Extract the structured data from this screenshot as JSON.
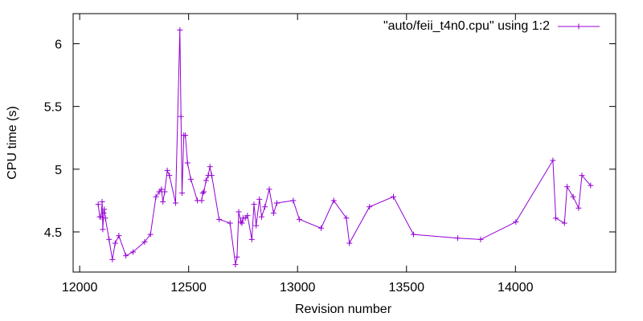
{
  "chart_data": {
    "type": "line",
    "xlabel": "Revision number",
    "ylabel": "CPU time (s)",
    "xlim": [
      11970,
      14460
    ],
    "ylim": [
      4.18,
      6.24
    ],
    "x_ticks": [
      12000,
      12500,
      13000,
      13500,
      14000
    ],
    "y_ticks": [
      4.5,
      5,
      5.5,
      6
    ],
    "y_tick_labels": [
      "4.5",
      "5",
      "5.5",
      "6"
    ],
    "grid": false,
    "legend_position": "top-right",
    "series_color": "#9400d3",
    "series": [
      {
        "name": "\"auto/feii_t4n0.cpu\" using 1:2",
        "x": [
          12085,
          12092,
          12098,
          12103,
          12106,
          12110,
          12113,
          12118,
          12135,
          12150,
          12163,
          12180,
          12212,
          12245,
          12298,
          12325,
          12350,
          12365,
          12375,
          12382,
          12390,
          12402,
          12412,
          12440,
          12460,
          12465,
          12470,
          12478,
          12485,
          12495,
          12510,
          12540,
          12560,
          12565,
          12570,
          12580,
          12590,
          12598,
          12606,
          12640,
          12690,
          12715,
          12722,
          12730,
          12740,
          12745,
          12750,
          12760,
          12770,
          12790,
          12800,
          12810,
          12825,
          12835,
          12850,
          12870,
          12890,
          12905,
          12980,
          13008,
          13108,
          13166,
          13224,
          13238,
          13330,
          13440,
          13532,
          13735,
          13840,
          14002,
          14172,
          14185,
          14225,
          14237,
          14265,
          14290,
          14305,
          14345
        ],
        "y": [
          4.72,
          4.62,
          4.62,
          4.74,
          4.52,
          4.65,
          4.68,
          4.61,
          4.44,
          4.28,
          4.41,
          4.47,
          4.31,
          4.34,
          4.42,
          4.48,
          4.78,
          4.82,
          4.84,
          4.74,
          4.82,
          4.99,
          4.95,
          4.73,
          6.11,
          5.42,
          4.81,
          5.27,
          5.27,
          5.05,
          4.92,
          4.75,
          4.75,
          4.81,
          4.82,
          4.91,
          4.95,
          5.02,
          4.95,
          4.6,
          4.57,
          4.24,
          4.3,
          4.66,
          4.58,
          4.57,
          4.61,
          4.61,
          4.63,
          4.44,
          4.72,
          4.55,
          4.76,
          4.62,
          4.7,
          4.84,
          4.65,
          4.73,
          4.75,
          4.6,
          4.53,
          4.75,
          4.61,
          4.41,
          4.7,
          4.78,
          4.48,
          4.45,
          4.44,
          4.58,
          5.07,
          4.61,
          4.57,
          4.86,
          4.78,
          4.69,
          4.95,
          4.87
        ]
      }
    ]
  }
}
